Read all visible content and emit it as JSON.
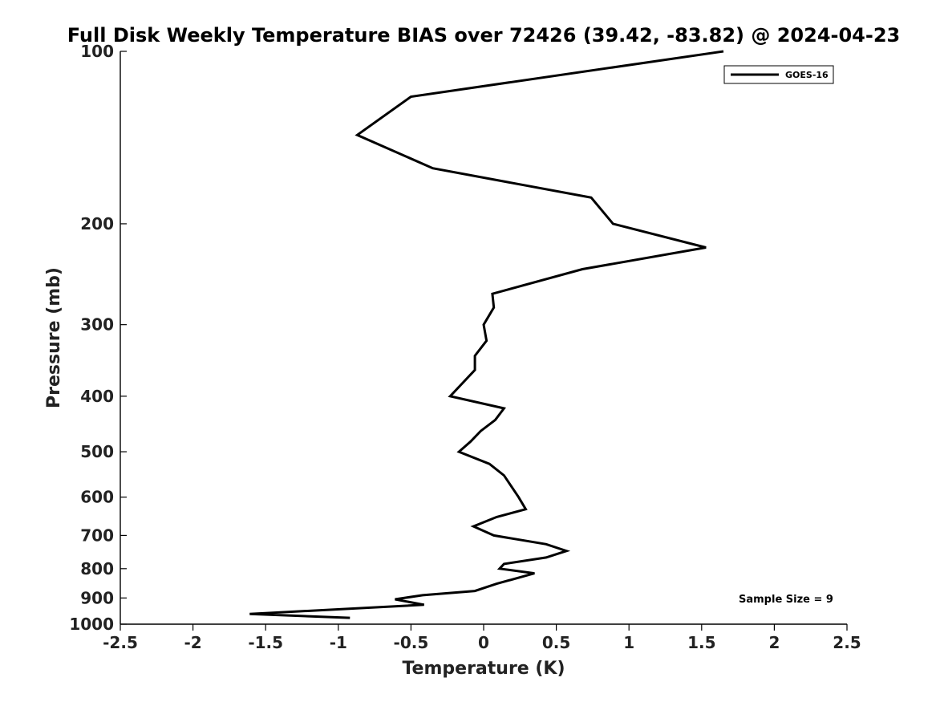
{
  "chart_data": {
    "type": "line",
    "title": "Full Disk Weekly Temperature BIAS over 72426 (39.42, -83.82) @ 2024-04-23",
    "xlabel": "Temperature (K)",
    "ylabel": "Pressure (mb)",
    "xlim": [
      -2.5,
      2.5
    ],
    "ylim": [
      100,
      1000
    ],
    "y_scale": "log",
    "y_reversed": true,
    "grid": false,
    "legend_position": "top-right",
    "x_ticks": [
      -2.5,
      -2,
      -1.5,
      -1,
      -0.5,
      0,
      0.5,
      1,
      1.5,
      2,
      2.5
    ],
    "x_tick_labels": [
      "-2.5",
      "-2",
      "-1.5",
      "-1",
      "-0.5",
      "0",
      "0.5",
      "1",
      "1.5",
      "2",
      "2.5"
    ],
    "y_ticks": [
      100,
      200,
      300,
      400,
      500,
      600,
      700,
      800,
      900,
      1000
    ],
    "y_tick_labels": [
      "100",
      "200",
      "300",
      "400",
      "500",
      "600",
      "700",
      "800",
      "900",
      "1000"
    ],
    "annotation": "Sample Size = 9",
    "series": [
      {
        "name": "GOES-16",
        "color": "#000000",
        "points": [
          {
            "x": 1.65,
            "p": 100
          },
          {
            "x": -0.5,
            "p": 120
          },
          {
            "x": -0.87,
            "p": 140
          },
          {
            "x": -0.35,
            "p": 160
          },
          {
            "x": 0.74,
            "p": 180
          },
          {
            "x": 0.89,
            "p": 200
          },
          {
            "x": 1.53,
            "p": 220
          },
          {
            "x": 0.68,
            "p": 240
          },
          {
            "x": 0.06,
            "p": 265
          },
          {
            "x": 0.07,
            "p": 280
          },
          {
            "x": 0.0,
            "p": 300
          },
          {
            "x": 0.02,
            "p": 320
          },
          {
            "x": -0.06,
            "p": 340
          },
          {
            "x": -0.06,
            "p": 360
          },
          {
            "x": -0.23,
            "p": 400
          },
          {
            "x": 0.14,
            "p": 420
          },
          {
            "x": 0.08,
            "p": 440
          },
          {
            "x": -0.02,
            "p": 460
          },
          {
            "x": -0.09,
            "p": 480
          },
          {
            "x": -0.17,
            "p": 500
          },
          {
            "x": 0.04,
            "p": 525
          },
          {
            "x": 0.14,
            "p": 550
          },
          {
            "x": 0.24,
            "p": 600
          },
          {
            "x": 0.29,
            "p": 630
          },
          {
            "x": 0.09,
            "p": 650
          },
          {
            "x": -0.07,
            "p": 675
          },
          {
            "x": 0.07,
            "p": 700
          },
          {
            "x": 0.43,
            "p": 725
          },
          {
            "x": 0.57,
            "p": 745
          },
          {
            "x": 0.43,
            "p": 765
          },
          {
            "x": 0.14,
            "p": 785
          },
          {
            "x": 0.11,
            "p": 800
          },
          {
            "x": 0.35,
            "p": 815
          },
          {
            "x": 0.09,
            "p": 850
          },
          {
            "x": -0.06,
            "p": 875
          },
          {
            "x": -0.42,
            "p": 890
          },
          {
            "x": -0.61,
            "p": 905
          },
          {
            "x": -0.41,
            "p": 925
          },
          {
            "x": -1.61,
            "p": 960
          },
          {
            "x": -0.92,
            "p": 975
          }
        ]
      }
    ]
  }
}
